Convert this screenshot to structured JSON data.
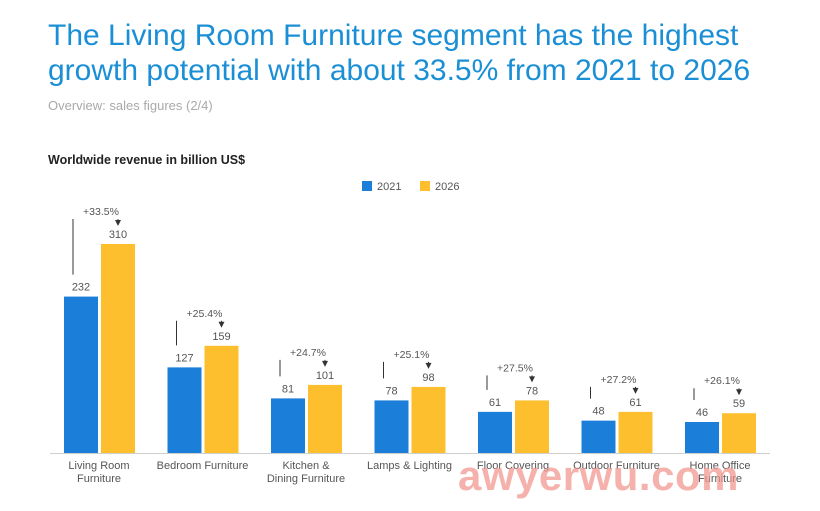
{
  "headline": "The Living Room Furniture segment has the highest growth potential with about 33.5% from 2021 to 2026",
  "subtitle": "Overview: sales figures (2/4)",
  "watermark": "awyerwu.com",
  "colors": {
    "series_2021": "#1b7fd9",
    "series_2026": "#fdbf2d",
    "headline": "#1b8fd6"
  },
  "chart_data": {
    "type": "bar",
    "title": "Worldwide revenue in billion US$",
    "xlabel": "",
    "ylabel": "",
    "ylim": [
      0,
      310
    ],
    "legend_position": "top-center",
    "grid": false,
    "categories": [
      [
        "Living Room",
        "Furniture"
      ],
      [
        "Bedroom Furniture"
      ],
      [
        "Kitchen &",
        "Dining Furniture"
      ],
      [
        "Lamps & Lighting"
      ],
      [
        "Floor Covering"
      ],
      [
        "Outdoor Furniture"
      ],
      [
        "Home Office",
        "Furniture"
      ]
    ],
    "series": [
      {
        "name": "2021",
        "values": [
          232,
          127,
          81,
          78,
          61,
          48,
          46
        ]
      },
      {
        "name": "2026",
        "values": [
          310,
          159,
          101,
          98,
          78,
          61,
          59
        ]
      }
    ],
    "growth_labels": [
      "+33.5%",
      "+25.4%",
      "+24.7%",
      "+25.1%",
      "+27.5%",
      "+27.2%",
      "+26.1%"
    ]
  }
}
